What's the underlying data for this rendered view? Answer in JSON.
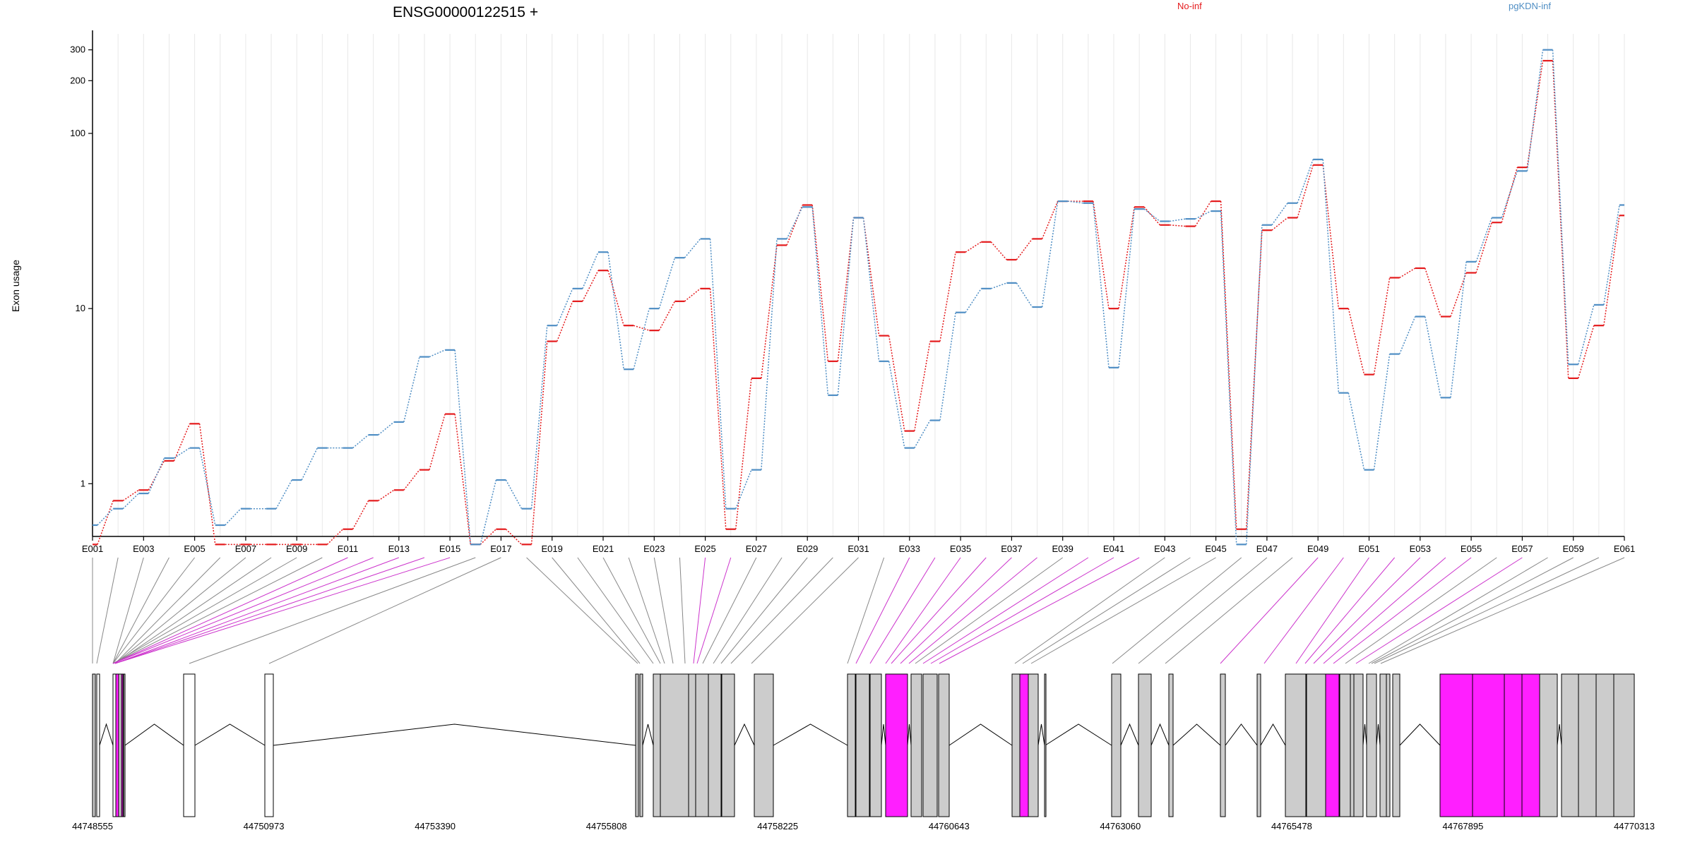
{
  "chart_data": {
    "type": "line",
    "title": "ENSG00000122515 +",
    "ylabel": "Exon usage",
    "yscale": "log",
    "ylim": [
      0.5,
      370
    ],
    "yticks": [
      1,
      10,
      100,
      200,
      300
    ],
    "grid": "vertical",
    "legend_position": "top-right",
    "exons": [
      "E001",
      "E002",
      "E003",
      "E004",
      "E005",
      "E006",
      "E007",
      "E008",
      "E009",
      "E010",
      "E011",
      "E012",
      "E013",
      "E014",
      "E015",
      "E016",
      "E017",
      "E018",
      "E019",
      "E020",
      "E021",
      "E022",
      "E023",
      "E024",
      "E025",
      "E026",
      "E027",
      "E028",
      "E029",
      "E030",
      "E031",
      "E032",
      "E033",
      "E034",
      "E035",
      "E036",
      "E037",
      "E038",
      "E039",
      "E040",
      "E041",
      "E042",
      "E043",
      "E044",
      "E045",
      "E046",
      "E047",
      "E048",
      "E049",
      "E050",
      "E051",
      "E052",
      "E053",
      "E054",
      "E055",
      "E056",
      "E057",
      "E058",
      "E059",
      "E060",
      "E061"
    ],
    "tick_labels": [
      "E001",
      "E003",
      "E005",
      "E007",
      "E009",
      "E011",
      "E013",
      "E015",
      "E017",
      "E019",
      "E021",
      "E023",
      "E025",
      "E027",
      "E029",
      "E031",
      "E033",
      "E035",
      "E037",
      "E039",
      "E041",
      "E043",
      "E045",
      "E047",
      "E049",
      "E051",
      "E053",
      "E055",
      "E057",
      "E059",
      "E061"
    ],
    "series": [
      {
        "name": "No-inf",
        "color": "#e41a1c",
        "values": [
          0.45,
          0.8,
          0.92,
          1.35,
          2.2,
          0.45,
          0.45,
          0.45,
          0.45,
          0.45,
          0.55,
          0.8,
          0.92,
          1.2,
          2.5,
          0.45,
          0.55,
          0.45,
          6.5,
          11,
          16.5,
          8,
          7.5,
          11,
          13,
          0.55,
          4,
          23,
          39,
          5,
          33,
          7,
          2,
          6.5,
          21,
          24,
          19,
          25,
          41,
          41,
          10,
          38,
          30,
          29.5,
          41,
          0.55,
          28,
          33,
          66,
          10,
          4.2,
          15,
          17,
          9,
          16,
          31,
          64,
          260,
          4,
          8,
          34
        ]
      },
      {
        "name": "pgKDN-inf",
        "color": "#4f8ec4",
        "values": [
          0.58,
          0.72,
          0.88,
          1.4,
          1.6,
          0.58,
          0.72,
          0.72,
          1.05,
          1.6,
          1.6,
          1.9,
          2.25,
          5.3,
          5.8,
          0.45,
          1.05,
          0.72,
          8,
          13,
          21,
          4.5,
          10,
          19.5,
          25,
          0.72,
          1.2,
          25,
          38,
          3.2,
          33,
          5,
          1.6,
          2.3,
          9.5,
          13,
          14,
          10.2,
          41,
          40,
          4.6,
          37,
          31.5,
          32.5,
          36,
          0.45,
          30,
          40,
          71,
          3.3,
          1.2,
          5.5,
          9,
          3.1,
          18.5,
          33,
          61,
          300,
          4.8,
          10.5,
          39
        ]
      }
    ],
    "gene_model": {
      "coord_labels": [
        "44748555",
        "44750973",
        "44753390",
        "44755808",
        "44758225",
        "44760643",
        "44763060",
        "44765478",
        "44767895",
        "44770313"
      ],
      "exon_colors": {
        "normal": "#cccccc",
        "significant": "#ff1fff",
        "outline": "#000000"
      },
      "significant_exons": [
        "E011",
        "E012",
        "E013",
        "E014",
        "E015",
        "E025",
        "E026",
        "E033",
        "E034",
        "E035",
        "E036",
        "E037",
        "E038",
        "E040",
        "E041",
        "E042",
        "E049",
        "E050",
        "E051",
        "E052",
        "E053",
        "E054",
        "E055",
        "E057"
      ]
    }
  }
}
